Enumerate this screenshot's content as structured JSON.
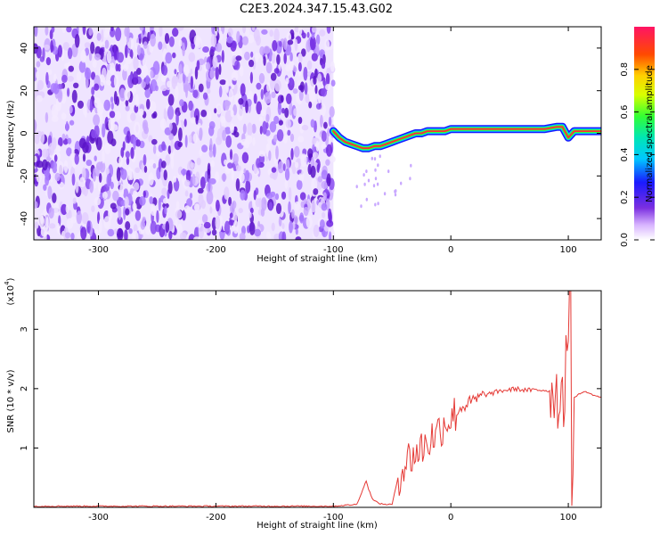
{
  "title": "C2E3.2024.347.15.43.G02",
  "chart_data": [
    {
      "type": "heatmap",
      "xlabel": "Height of straight line (km)",
      "ylabel": "Frequency (Hz)",
      "xlim": [
        -355,
        128
      ],
      "ylim": [
        -50,
        50
      ],
      "xticks": [
        -300,
        -200,
        -100,
        0,
        100
      ],
      "yticks": [
        -40,
        -20,
        0,
        20,
        40
      ],
      "colorbar": {
        "label": "Normalized spectral amplitude",
        "range": [
          0,
          1
        ],
        "ticks": [
          "0.0",
          "0.2",
          "0.4",
          "0.6",
          "0.8"
        ]
      },
      "noise_region_x": [
        -355,
        -100
      ],
      "signal_ridge": {
        "x": [
          -100,
          -95,
          -90,
          -85,
          -80,
          -75,
          -70,
          -65,
          -60,
          -55,
          -50,
          -45,
          -40,
          -35,
          -30,
          -25,
          -20,
          -15,
          -10,
          -5,
          0,
          5,
          20,
          40,
          60,
          80,
          90,
          95,
          100,
          105,
          110,
          128
        ],
        "y": [
          1,
          -2,
          -4,
          -5,
          -6,
          -7,
          -7,
          -6,
          -6,
          -5,
          -4,
          -3,
          -2,
          -1,
          0,
          0,
          1,
          1,
          1,
          1,
          2,
          2,
          2,
          2,
          2,
          2,
          3,
          3,
          -2,
          1,
          1,
          1
        ]
      }
    },
    {
      "type": "line",
      "xlabel": "Height of straight line (km)",
      "ylabel": "SNR (10 * v/v)",
      "yscale_label": "(x10",
      "yscale_exp": "4",
      "xlim": [
        -355,
        128
      ],
      "ylim": [
        0,
        3.65
      ],
      "xticks": [
        -300,
        -200,
        -100,
        0,
        100
      ],
      "yticks": [
        1,
        2,
        3
      ],
      "color": "#e53935",
      "series": [
        {
          "x": [
            -355,
            -300,
            -200,
            -100,
            -80,
            -75,
            -72,
            -70,
            -66,
            -60,
            -55,
            -50,
            -45,
            -40,
            -35,
            -30,
            -25,
            -20,
            -15,
            -10,
            -5,
            0,
            5,
            10,
            15,
            20,
            25,
            30,
            35,
            40,
            45,
            50,
            55,
            60,
            70,
            80,
            85,
            90,
            92,
            94,
            96,
            98,
            100,
            102,
            103,
            105,
            110,
            115,
            120,
            128
          ],
          "y": [
            0.02,
            0.02,
            0.02,
            0.02,
            0.05,
            0.3,
            0.45,
            0.3,
            0.12,
            0.06,
            0.05,
            0.05,
            0.5,
            0.7,
            0.85,
            0.9,
            1.0,
            1.1,
            1.2,
            1.3,
            1.45,
            1.5,
            1.6,
            1.7,
            1.75,
            1.8,
            1.85,
            1.9,
            1.92,
            1.95,
            1.97,
            1.98,
            2.0,
            1.98,
            1.97,
            1.98,
            1.95,
            1.95,
            1.5,
            2.4,
            1.6,
            2.6,
            3.0,
            3.6,
            0.15,
            1.85,
            1.92,
            1.95,
            1.9,
            1.85
          ]
        }
      ]
    }
  ]
}
